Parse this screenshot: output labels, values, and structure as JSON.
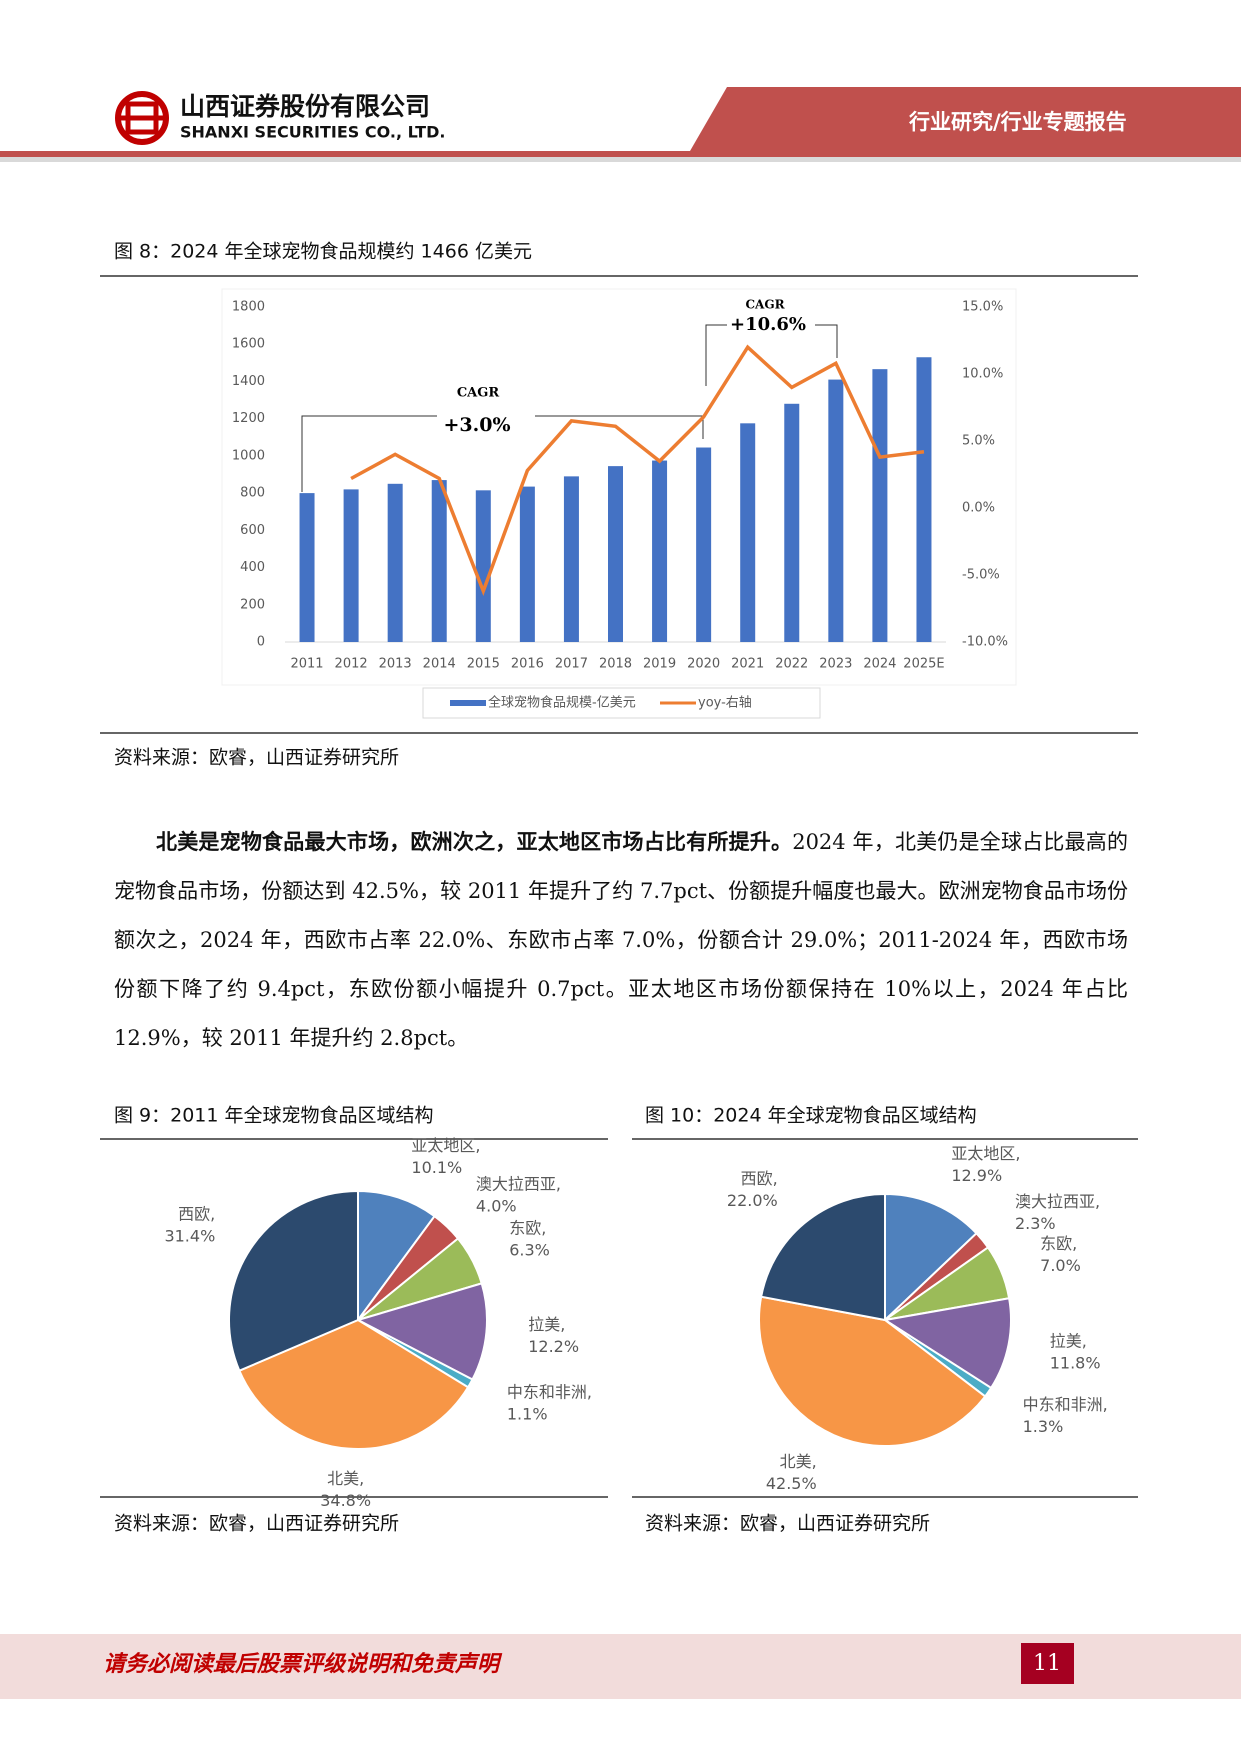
{
  "header": {
    "company_cn": "山西证券股份有限公司",
    "company_en": "SHANXI SECURITIES CO., LTD.",
    "category": "行业研究/行业专题报告"
  },
  "chart_data": [
    {
      "type": "bar",
      "title": "图 8：2024 年全球宠物食品规模约 1466 亿美元",
      "categories": [
        "2011",
        "2012",
        "2013",
        "2014",
        "2015",
        "2016",
        "2017",
        "2018",
        "2019",
        "2020",
        "2021",
        "2022",
        "2023",
        "2024",
        "2025E"
      ],
      "series": [
        {
          "name": "全球宠物食品规模-亿美元",
          "color": "#4472c4",
          "type": "bar",
          "values": [
            800,
            820,
            850,
            870,
            815,
            835,
            890,
            945,
            975,
            1045,
            1175,
            1280,
            1410,
            1466,
            1530
          ]
        },
        {
          "name": "yoy-右轴",
          "color": "#ed7d31",
          "type": "line",
          "axis": "y2",
          "values": [
            null,
            2.2,
            4.0,
            2.2,
            -6.2,
            2.8,
            6.5,
            6.1,
            3.5,
            6.8,
            12.0,
            9.0,
            10.8,
            3.8,
            4.2
          ]
        }
      ],
      "ylim": [
        0,
        1800
      ],
      "yticks": [
        0,
        200,
        400,
        600,
        800,
        1000,
        1200,
        1400,
        1600,
        1800
      ],
      "y2lim": [
        -10,
        15
      ],
      "y2ticks": [
        {
          "value": -10,
          "label": "-10.0%"
        },
        {
          "value": -5,
          "label": "-5.0%"
        },
        {
          "value": 0,
          "label": "0.0%"
        },
        {
          "value": 5,
          "label": "5.0%"
        },
        {
          "value": 10,
          "label": "10.0%"
        },
        {
          "value": 15,
          "label": "15.0%"
        }
      ],
      "annotations": [
        "CAGR",
        "+3.0%",
        "CAGR",
        "+10.6%"
      ],
      "legend": "bottom",
      "source": "资料来源：欧睿，山西证券研究所"
    },
    {
      "type": "pie",
      "title": "图 9：2011 年全球宠物食品区域结构",
      "categories": [
        "亚太地区,",
        "澳大拉西亚,",
        "东欧,",
        "拉美,",
        "中东和非洲,",
        "北美,",
        "西欧,"
      ],
      "values": [
        10.1,
        4.0,
        6.3,
        12.2,
        1.1,
        34.8,
        31.4
      ],
      "value_labels": [
        "10.1%",
        "4.0%",
        "6.3%",
        "12.2%",
        "1.1%",
        "34.8%",
        "31.4%"
      ],
      "colors": [
        "#4f81bd",
        "#c0504d",
        "#9bbb59",
        "#8064a2",
        "#4bacc6",
        "#f79646",
        "#2c4a6e"
      ],
      "source": "资料来源：欧睿，山西证券研究所"
    },
    {
      "type": "pie",
      "title": "图 10：2024 年全球宠物食品区域结构",
      "categories": [
        "亚太地区,",
        "澳大拉西亚,",
        "东欧,",
        "拉美,",
        "中东和非洲,",
        "北美,",
        "西欧,"
      ],
      "values": [
        12.9,
        2.3,
        7.0,
        11.8,
        1.3,
        42.5,
        22.0
      ],
      "value_labels": [
        "12.9%",
        "2.3%",
        "7.0%",
        "11.8%",
        "1.3%",
        "42.5%",
        "22.0%"
      ],
      "colors": [
        "#4f81bd",
        "#c0504d",
        "#9bbb59",
        "#8064a2",
        "#4bacc6",
        "#f79646",
        "#2c4a6e"
      ],
      "source": "资料来源：欧睿，山西证券研究所"
    }
  ],
  "paragraph": {
    "lead": "北美是宠物食品最大市场，欧洲次之，亚太地区市场占比有所提升。",
    "body": "2024 年，北美仍是全球占比最高的宠物食品市场，份额达到 42.5%，较 2011 年提升了约 7.7pct、份额提升幅度也最大。欧洲宠物食品市场份额次之，2024 年，西欧市占率 22.0%、东欧市占率 7.0%，份额合计 29.0%；2011-2024 年，西欧市场份额下降了约 9.4pct，东欧份额小幅提升 0.7pct。亚太地区市场份额保持在 10%以上，2024 年占比 12.9%，较 2011 年提升约 2.8pct。"
  },
  "footer": {
    "disclaimer": "请务必阅读最后股票评级说明和免责声明",
    "page_number": 11
  }
}
